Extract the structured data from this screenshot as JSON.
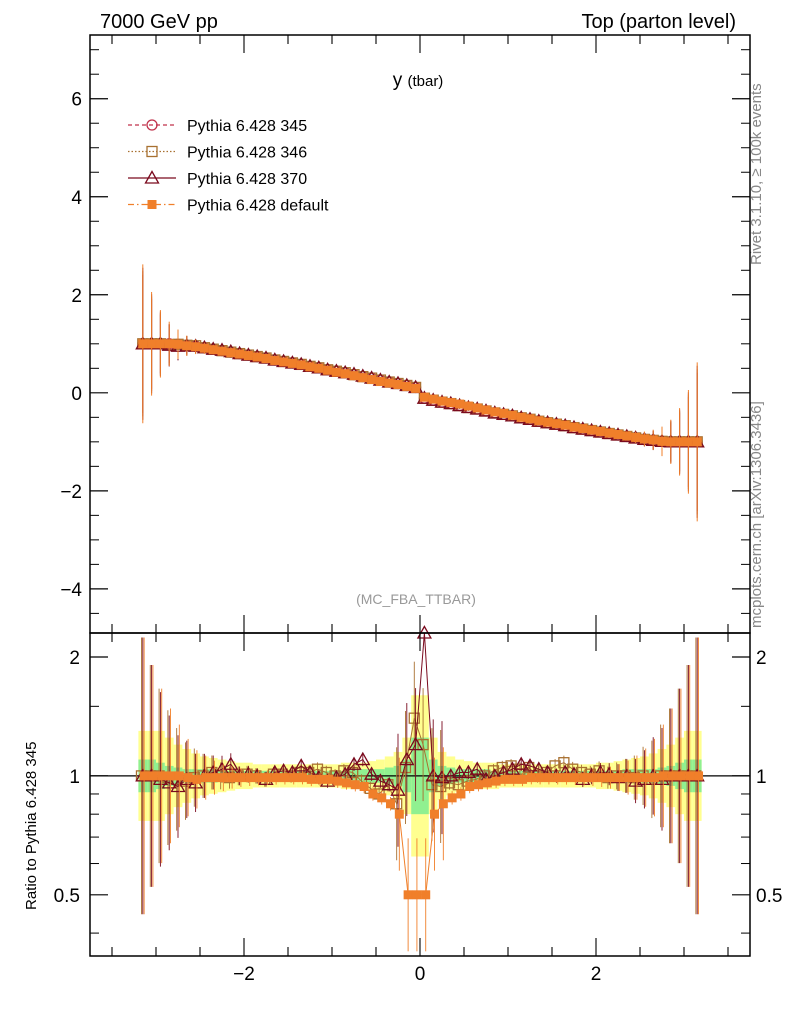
{
  "header": {
    "left": "7000 GeV pp",
    "right": "Top (parton level)"
  },
  "side_labels": {
    "rivet": "Rivet 3.1.10, ≥ 100k events",
    "mcplots": "mcplots.cern.ch [arXiv:1306.3436]"
  },
  "chart_data": [
    {
      "type": "line",
      "title": "y (tbar)",
      "title_main": "y",
      "title_sub": "(tbar)",
      "annotation": "(MC_FBA_TTBAR)",
      "xlim": [
        -3.75,
        3.75
      ],
      "ylim": [
        -4.9,
        7.3
      ],
      "x_ticks": [
        "−2",
        "0",
        "2"
      ],
      "y_ticks": [
        "−4",
        "−2",
        "0",
        "2",
        "4",
        "6"
      ],
      "legend_placement": "top-left",
      "x": [
        -3.15,
        -3.05,
        -2.95,
        -2.85,
        -2.75,
        -2.65,
        -2.55,
        -2.45,
        -2.35,
        -2.25,
        -2.15,
        -2.05,
        -1.95,
        -1.85,
        -1.75,
        -1.65,
        -1.55,
        -1.45,
        -1.35,
        -1.25,
        -1.15,
        -1.05,
        -0.95,
        -0.85,
        -0.75,
        -0.65,
        -0.55,
        -0.45,
        -0.35,
        -0.25,
        -0.15,
        -0.05,
        0.05,
        0.15,
        0.25,
        0.35,
        0.45,
        0.55,
        0.65,
        0.75,
        0.85,
        0.95,
        1.05,
        1.15,
        1.25,
        1.35,
        1.45,
        1.55,
        1.65,
        1.75,
        1.85,
        1.95,
        2.05,
        2.15,
        2.25,
        2.35,
        2.45,
        2.55,
        2.65,
        2.75,
        2.85,
        2.95,
        3.05,
        3.15
      ],
      "series": [
        {
          "name": "Pythia 6.428 345",
          "color": "#c0304a",
          "dash": "4,3",
          "marker": "circle-open",
          "values": [
            1.0,
            1.0,
            1.0,
            1.0,
            0.99,
            0.97,
            0.95,
            0.92,
            0.89,
            0.86,
            0.83,
            0.8,
            0.77,
            0.74,
            0.71,
            0.67,
            0.64,
            0.61,
            0.58,
            0.54,
            0.51,
            0.47,
            0.44,
            0.41,
            0.37,
            0.33,
            0.3,
            0.26,
            0.22,
            0.19,
            0.15,
            0.11,
            -0.11,
            -0.15,
            -0.19,
            -0.22,
            -0.26,
            -0.3,
            -0.33,
            -0.37,
            -0.41,
            -0.44,
            -0.47,
            -0.51,
            -0.54,
            -0.58,
            -0.61,
            -0.64,
            -0.67,
            -0.71,
            -0.74,
            -0.77,
            -0.8,
            -0.83,
            -0.86,
            -0.89,
            -0.92,
            -0.95,
            -0.97,
            -0.99,
            -1.0,
            -1.0,
            -1.0,
            -1.0
          ]
        },
        {
          "name": "Pythia 6.428 346",
          "color": "#a87030",
          "dash": "1.5,2",
          "marker": "square-open",
          "values": [
            1.0,
            1.0,
            1.0,
            0.98,
            0.99,
            0.97,
            0.96,
            0.92,
            0.89,
            0.86,
            0.83,
            0.8,
            0.77,
            0.74,
            0.71,
            0.67,
            0.64,
            0.61,
            0.58,
            0.54,
            0.51,
            0.47,
            0.44,
            0.41,
            0.37,
            0.33,
            0.3,
            0.26,
            0.22,
            0.19,
            0.15,
            0.11,
            -0.11,
            -0.15,
            -0.19,
            -0.22,
            -0.26,
            -0.3,
            -0.33,
            -0.37,
            -0.41,
            -0.44,
            -0.47,
            -0.51,
            -0.54,
            -0.58,
            -0.61,
            -0.64,
            -0.67,
            -0.71,
            -0.74,
            -0.77,
            -0.8,
            -0.83,
            -0.86,
            -0.89,
            -0.92,
            -0.95,
            -0.97,
            -0.99,
            -1.0,
            -1.0,
            -1.0,
            -1.0
          ]
        },
        {
          "name": "Pythia 6.428 370",
          "color": "#7a0a1e",
          "dash": "",
          "marker": "triangle-open",
          "values": [
            1.0,
            1.0,
            1.0,
            0.97,
            0.95,
            0.96,
            0.95,
            0.92,
            0.89,
            0.87,
            0.84,
            0.8,
            0.77,
            0.74,
            0.71,
            0.67,
            0.64,
            0.61,
            0.58,
            0.54,
            0.51,
            0.47,
            0.44,
            0.41,
            0.38,
            0.34,
            0.3,
            0.26,
            0.22,
            0.19,
            0.15,
            0.11,
            -0.11,
            -0.15,
            -0.19,
            -0.22,
            -0.26,
            -0.3,
            -0.33,
            -0.37,
            -0.41,
            -0.44,
            -0.47,
            -0.51,
            -0.54,
            -0.58,
            -0.61,
            -0.64,
            -0.67,
            -0.71,
            -0.74,
            -0.77,
            -0.8,
            -0.83,
            -0.86,
            -0.89,
            -0.92,
            -0.95,
            -0.97,
            -0.99,
            -1.0,
            -1.0,
            -1.0,
            -1.0
          ]
        },
        {
          "name": "Pythia 6.428 default",
          "color": "#f07f2a",
          "dash": "6,3,1.5,3",
          "marker": "square-filled",
          "values": [
            1.0,
            1.0,
            1.0,
            1.0,
            0.99,
            0.96,
            0.94,
            0.91,
            0.88,
            0.85,
            0.82,
            0.79,
            0.76,
            0.73,
            0.7,
            0.66,
            0.63,
            0.6,
            0.57,
            0.53,
            0.5,
            0.46,
            0.42,
            0.39,
            0.35,
            0.31,
            0.27,
            0.23,
            0.2,
            0.17,
            0.13,
            0.09,
            -0.09,
            -0.13,
            -0.17,
            -0.2,
            -0.23,
            -0.27,
            -0.31,
            -0.35,
            -0.39,
            -0.42,
            -0.46,
            -0.5,
            -0.53,
            -0.57,
            -0.6,
            -0.63,
            -0.66,
            -0.7,
            -0.73,
            -0.76,
            -0.79,
            -0.82,
            -0.85,
            -0.88,
            -0.91,
            -0.94,
            -0.96,
            -0.99,
            -1.0,
            -1.0,
            -1.0,
            -1.0
          ]
        }
      ]
    },
    {
      "type": "line",
      "ylabel": "Ratio to Pythia 6.428 345",
      "xlim": [
        -3.75,
        3.75
      ],
      "ylim": [
        0.35,
        2.3
      ],
      "y_scale": "log",
      "y_ticks": [
        "0.5",
        "1",
        "2"
      ],
      "x_ticks": [
        "−2",
        "0",
        "2"
      ],
      "reference": 1,
      "x": [
        -3.15,
        -3.05,
        -2.95,
        -2.85,
        -2.75,
        -2.65,
        -2.55,
        -2.45,
        -2.35,
        -2.25,
        -2.15,
        -2.05,
        -1.95,
        -1.85,
        -1.75,
        -1.65,
        -1.55,
        -1.45,
        -1.35,
        -1.25,
        -1.15,
        -1.05,
        -0.95,
        -0.85,
        -0.75,
        -0.65,
        -0.55,
        -0.45,
        -0.35,
        -0.25,
        -0.15,
        -0.05,
        0.05,
        0.15,
        0.25,
        0.35,
        0.45,
        0.55,
        0.65,
        0.75,
        0.85,
        0.95,
        1.05,
        1.15,
        1.25,
        1.35,
        1.45,
        1.55,
        1.65,
        1.75,
        1.85,
        1.95,
        2.05,
        2.15,
        2.25,
        2.35,
        2.45,
        2.55,
        2.65,
        2.75,
        2.85,
        2.95,
        3.05,
        3.15
      ],
      "band_green": [
        1.1,
        1.1,
        1.08,
        1.06,
        1.05,
        1.04,
        1.04,
        1.04,
        1.04,
        1.03,
        1.03,
        1.03,
        1.03,
        1.03,
        1.03,
        1.03,
        1.03,
        1.03,
        1.03,
        1.03,
        1.03,
        1.03,
        1.03,
        1.03,
        1.04,
        1.04,
        1.04,
        1.04,
        1.05,
        1.06,
        1.1,
        1.25,
        1.25,
        1.1,
        1.06,
        1.05,
        1.04,
        1.04,
        1.04,
        1.04,
        1.03,
        1.03,
        1.03,
        1.03,
        1.03,
        1.03,
        1.03,
        1.03,
        1.03,
        1.03,
        1.03,
        1.03,
        1.03,
        1.03,
        1.03,
        1.04,
        1.04,
        1.04,
        1.04,
        1.05,
        1.06,
        1.08,
        1.1,
        1.1
      ],
      "band_yellow": [
        1.3,
        1.3,
        1.3,
        1.25,
        1.2,
        1.17,
        1.14,
        1.12,
        1.11,
        1.1,
        1.09,
        1.08,
        1.08,
        1.07,
        1.07,
        1.07,
        1.07,
        1.07,
        1.07,
        1.07,
        1.07,
        1.07,
        1.07,
        1.08,
        1.08,
        1.08,
        1.09,
        1.1,
        1.12,
        1.15,
        1.25,
        1.6,
        1.6,
        1.25,
        1.15,
        1.12,
        1.1,
        1.09,
        1.08,
        1.08,
        1.08,
        1.07,
        1.07,
        1.07,
        1.07,
        1.07,
        1.07,
        1.07,
        1.07,
        1.07,
        1.07,
        1.07,
        1.08,
        1.08,
        1.09,
        1.1,
        1.11,
        1.12,
        1.14,
        1.17,
        1.2,
        1.25,
        1.3,
        1.3
      ],
      "series": [
        {
          "name": "Pythia 6.428 346",
          "color": "#a87030",
          "marker": "square-open",
          "values": [
            1.0,
            1.0,
            1.0,
            0.99,
            0.98,
            0.97,
            0.99,
            1.0,
            1.02,
            1.0,
            0.99,
            1.0,
            1.01,
            1.0,
            0.98,
            1.01,
            1.01,
            1.0,
            1.02,
            1.02,
            1.04,
            1.02,
            1.0,
            1.03,
            1.02,
            0.97,
            0.93,
            0.9,
            0.95,
            0.85,
            1.05,
            1.4,
            1.2,
            0.95,
            0.94,
            0.96,
            0.95,
            0.97,
            0.98,
            1.0,
            1.03,
            1.05,
            1.06,
            1.04,
            1.05,
            1.0,
            1.02,
            1.06,
            1.08,
            1.04,
            1.02,
            1.01,
            1.03,
            0.99,
            1.0,
            1.0,
            0.99,
            1.0,
            0.98,
            1.0,
            1.0,
            1.0,
            1.0,
            1.0
          ]
        },
        {
          "name": "Pythia 6.428 370",
          "color": "#7a0a1e",
          "marker": "triangle-open",
          "values": [
            1.0,
            1.0,
            0.98,
            0.96,
            0.94,
            0.98,
            0.96,
            1.0,
            1.02,
            1.04,
            1.07,
            1.0,
            1.01,
            1.0,
            0.98,
            1.02,
            1.03,
            1.02,
            1.06,
            1.02,
            0.99,
            0.97,
            0.99,
            1.01,
            1.07,
            1.1,
            1.01,
            0.97,
            0.95,
            0.92,
            1.1,
            1.2,
            4.0,
            1.0,
            0.99,
            1.0,
            1.02,
            1.02,
            1.04,
            0.98,
            1.0,
            1.02,
            1.04,
            1.07,
            1.06,
            1.04,
            1.02,
            1.0,
            1.02,
            1.01,
            0.98,
            1.0,
            1.02,
            1.01,
            0.99,
            1.0,
            0.97,
            0.98,
            1.0,
            0.98,
            1.0,
            1.0,
            1.0,
            1.0
          ]
        },
        {
          "name": "Pythia 6.428 default",
          "color": "#f07f2a",
          "marker": "square-filled",
          "values": [
            1.0,
            1.0,
            1.0,
            1.0,
            1.0,
            0.99,
            0.98,
            0.99,
            0.99,
            0.99,
            0.99,
            0.99,
            0.99,
            0.99,
            0.99,
            0.99,
            0.99,
            0.99,
            0.99,
            0.98,
            0.98,
            0.98,
            0.97,
            0.96,
            0.95,
            0.94,
            0.9,
            0.88,
            0.85,
            0.8,
            0.5,
            0.5,
            0.5,
            0.8,
            0.85,
            0.88,
            0.9,
            0.94,
            0.95,
            0.96,
            0.97,
            0.98,
            0.98,
            0.98,
            0.99,
            0.99,
            0.99,
            0.99,
            0.99,
            0.99,
            0.99,
            0.99,
            0.99,
            0.99,
            0.99,
            0.99,
            0.99,
            0.99,
            0.99,
            1.0,
            1.0,
            1.0,
            1.0,
            1.0
          ]
        }
      ]
    }
  ]
}
